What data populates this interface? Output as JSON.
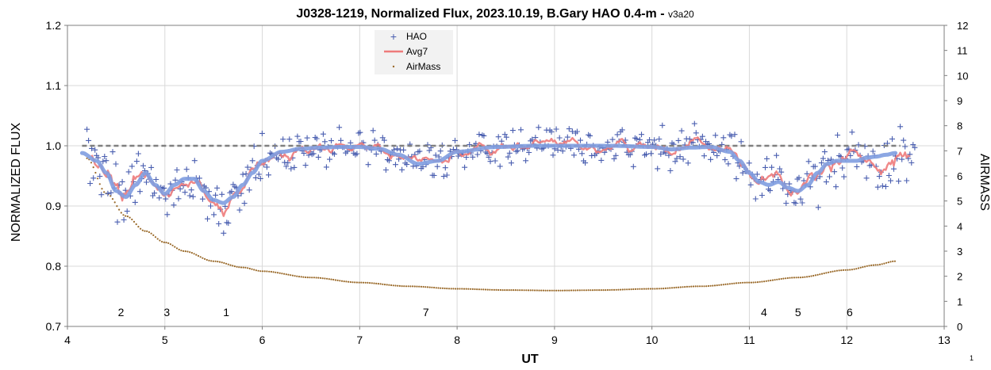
{
  "chart_data": {
    "type": "scatter",
    "title": "J0328-1219, Normalized Flux, 2023.10.19, B.Gary HAO 0.4-m - ",
    "title_suffix": "v3a20",
    "xlabel": "UT",
    "ylabel": "NORMALIZED FLUX",
    "y2label": "AIRMASS",
    "xlim": [
      4,
      13
    ],
    "ylim": [
      0.7,
      1.2
    ],
    "y2lim": [
      0,
      12
    ],
    "xticks": [
      "4",
      "5",
      "6",
      "7",
      "8",
      "9",
      "10",
      "11",
      "12",
      "13"
    ],
    "yticks": [
      "0.7",
      "0.8",
      "0.9",
      "1.0",
      "1.1",
      "1.2"
    ],
    "y2ticks": [
      "0",
      "1",
      "2",
      "3",
      "4",
      "5",
      "6",
      "7",
      "8",
      "9",
      "10",
      "11",
      "12"
    ],
    "grid": true,
    "legend_position": "top-center",
    "reference_line": {
      "y": 1.0,
      "style": "dashed",
      "color": "#7f7f7f"
    },
    "series": [
      {
        "name": "HAO",
        "kind": "scatter",
        "marker": "+",
        "color": "#4a5fb0",
        "x_range": [
          4.2,
          12.7
        ]
      },
      {
        "name": "Avg7",
        "kind": "line",
        "color": "#ee7b7b"
      },
      {
        "name": "AirMass",
        "kind": "scatter",
        "marker": ".",
        "color": "#9a6a2a",
        "axis": "right"
      }
    ],
    "trend_line": {
      "color": "#7f9de0",
      "x": [
        4.15,
        4.3,
        4.4,
        4.5,
        4.6,
        4.7,
        4.8,
        4.9,
        5.0,
        5.1,
        5.2,
        5.3,
        5.4,
        5.5,
        5.6,
        5.7,
        5.8,
        5.9,
        6.0,
        6.2,
        6.4,
        6.6,
        6.8,
        7.0,
        7.2,
        7.4,
        7.6,
        7.8,
        8.0,
        8.4,
        8.8,
        9.2,
        9.6,
        10.0,
        10.2,
        10.4,
        10.6,
        10.8,
        10.9,
        11.0,
        11.1,
        11.2,
        11.3,
        11.4,
        11.5,
        11.6,
        11.7,
        11.8,
        11.9,
        12.0,
        12.1,
        12.2,
        12.3,
        12.4,
        12.5
      ],
      "y": [
        0.988,
        0.975,
        0.955,
        0.925,
        0.915,
        0.935,
        0.955,
        0.935,
        0.92,
        0.935,
        0.945,
        0.945,
        0.925,
        0.91,
        0.905,
        0.915,
        0.935,
        0.955,
        0.975,
        0.99,
        0.995,
        0.997,
        0.998,
        0.998,
        0.995,
        0.985,
        0.97,
        0.975,
        0.99,
        0.998,
        1.0,
        1.0,
        1.0,
        0.998,
        0.994,
        0.997,
        0.998,
        0.99,
        0.975,
        0.955,
        0.94,
        0.935,
        0.94,
        0.93,
        0.925,
        0.935,
        0.955,
        0.97,
        0.975,
        0.975,
        0.975,
        0.98,
        0.982,
        0.985,
        0.988
      ]
    },
    "airmass_curve": {
      "x": [
        4.2,
        4.4,
        4.6,
        4.8,
        5.0,
        5.2,
        5.5,
        5.8,
        6.0,
        6.5,
        7.0,
        7.5,
        8.0,
        8.5,
        9.0,
        9.5,
        10.0,
        10.5,
        11.0,
        11.5,
        12.0,
        12.3,
        12.5
      ],
      "y": [
        6.7,
        5.3,
        4.4,
        3.8,
        3.35,
        3.0,
        2.6,
        2.35,
        2.2,
        1.95,
        1.75,
        1.6,
        1.5,
        1.45,
        1.43,
        1.45,
        1.5,
        1.6,
        1.75,
        1.95,
        2.25,
        2.45,
        2.6
      ]
    },
    "event_labels": [
      {
        "text": "2",
        "x": 4.55
      },
      {
        "text": "3",
        "x": 5.02
      },
      {
        "text": "1",
        "x": 5.63
      },
      {
        "text": "7",
        "x": 7.68
      },
      {
        "text": "4",
        "x": 11.15
      },
      {
        "text": "5",
        "x": 11.5
      },
      {
        "text": "6",
        "x": 12.03
      }
    ]
  },
  "page_number": "1"
}
